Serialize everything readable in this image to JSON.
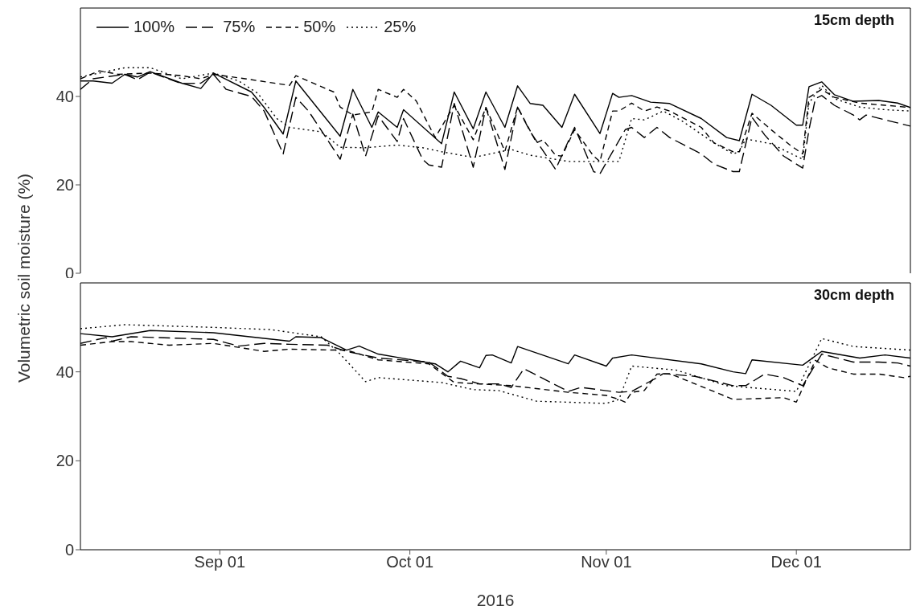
{
  "chart_data": [
    {
      "type": "line",
      "title": "15cm depth",
      "ylabel": "Volumetric soil moisture (%)",
      "xlim": [
        "2016-08-10",
        "2016-12-19"
      ],
      "ylim": [
        0,
        60
      ],
      "yticks": [
        0,
        20,
        40
      ],
      "tick_labels": "y",
      "legend": "top left",
      "series": [
        {
          "name": "100%",
          "color": "#000000",
          "line_style": "solid",
          "x": [
            "2016-08-10",
            "2016-08-12",
            "2016-08-15",
            "2016-08-17",
            "2016-08-19",
            "2016-08-21",
            "2016-08-26",
            "2016-08-29",
            "2016-08-31",
            "2016-09-06",
            "2016-09-08",
            "2016-09-11",
            "2016-09-13",
            "2016-09-20",
            "2016-09-22",
            "2016-09-25",
            "2016-09-26",
            "2016-09-29",
            "2016-09-30",
            "2016-10-06",
            "2016-10-08",
            "2016-10-11",
            "2016-10-13",
            "2016-10-16",
            "2016-10-18",
            "2016-10-20",
            "2016-10-22",
            "2016-10-25",
            "2016-10-27",
            "2016-10-31",
            "2016-11-02",
            "2016-11-03",
            "2016-11-05",
            "2016-11-08",
            "2016-11-11",
            "2016-11-16",
            "2016-11-20",
            "2016-11-22",
            "2016-11-24",
            "2016-11-27",
            "2016-12-01",
            "2016-12-02",
            "2016-12-03",
            "2016-12-05",
            "2016-12-07",
            "2016-12-10",
            "2016-12-14",
            "2016-12-17",
            "2016-12-19"
          ],
          "values": [
            43.5,
            43.5,
            43,
            45,
            44.4,
            45.6,
            43,
            41.8,
            45.3,
            41,
            37.5,
            31.5,
            43.5,
            31,
            41.6,
            33,
            36.5,
            33,
            37,
            29.3,
            41,
            32.7,
            41,
            33,
            42.4,
            38.4,
            38,
            33,
            40.5,
            31.6,
            40.7,
            39.8,
            40.2,
            38.7,
            38.4,
            35,
            30.7,
            30,
            40.5,
            38,
            33.5,
            33.5,
            42.2,
            43.3,
            40.4,
            38.9,
            39.1,
            38.5,
            37.5
          ]
        },
        {
          "name": "75%",
          "color": "#000000",
          "line_style": "longdash",
          "x": [
            "2016-08-10",
            "2016-08-12",
            "2016-08-17",
            "2016-08-19",
            "2016-08-21",
            "2016-08-26",
            "2016-08-29",
            "2016-08-31",
            "2016-09-02",
            "2016-09-06",
            "2016-09-08",
            "2016-09-11",
            "2016-09-13",
            "2016-09-15",
            "2016-09-20",
            "2016-09-22",
            "2016-09-24",
            "2016-09-26",
            "2016-09-29",
            "2016-09-30",
            "2016-10-03",
            "2016-10-04",
            "2016-10-06",
            "2016-10-08",
            "2016-10-11",
            "2016-10-13",
            "2016-10-16",
            "2016-10-18",
            "2016-10-20",
            "2016-10-24",
            "2016-10-27",
            "2016-10-30",
            "2016-10-31",
            "2016-11-04",
            "2016-11-05",
            "2016-11-07",
            "2016-11-09",
            "2016-11-11",
            "2016-11-16",
            "2016-11-18",
            "2016-11-21",
            "2016-11-22",
            "2016-11-24",
            "2016-11-26",
            "2016-11-29",
            "2016-12-02",
            "2016-12-03",
            "2016-12-04",
            "2016-12-05",
            "2016-12-07",
            "2016-12-10",
            "2016-12-11",
            "2016-12-12",
            "2016-12-15",
            "2016-12-19"
          ],
          "values": [
            41.6,
            44,
            45,
            43.8,
            45.5,
            42.9,
            43,
            45,
            41.6,
            40,
            36.7,
            27,
            39.8,
            36.7,
            25.8,
            36,
            26.5,
            35.6,
            29.8,
            35,
            25.8,
            24.5,
            24,
            38.4,
            24,
            37.5,
            23.5,
            37.6,
            32,
            23.5,
            33,
            23,
            22.5,
            32.5,
            33,
            30.7,
            33,
            30.7,
            27,
            24.7,
            23,
            23,
            35.3,
            31.3,
            26.5,
            23.8,
            32.5,
            39.5,
            40.2,
            38,
            35.8,
            34.7,
            35.8,
            34.7,
            33.3
          ]
        },
        {
          "name": "50%",
          "color": "#000000",
          "line_style": "dashed",
          "x": [
            "2016-08-10",
            "2016-08-13",
            "2016-08-16",
            "2016-08-21",
            "2016-08-26",
            "2016-08-29",
            "2016-08-31",
            "2016-09-05",
            "2016-09-12",
            "2016-09-13",
            "2016-09-19",
            "2016-09-20",
            "2016-09-22",
            "2016-09-25",
            "2016-09-26",
            "2016-09-29",
            "2016-09-30",
            "2016-10-02",
            "2016-10-05",
            "2016-10-08",
            "2016-10-11",
            "2016-10-13",
            "2016-10-16",
            "2016-10-18",
            "2016-10-21",
            "2016-10-22",
            "2016-10-24",
            "2016-10-25",
            "2016-10-27",
            "2016-10-30",
            "2016-10-31",
            "2016-11-02",
            "2016-11-03",
            "2016-11-05",
            "2016-11-07",
            "2016-11-09",
            "2016-11-11",
            "2016-11-16",
            "2016-11-18",
            "2016-11-21",
            "2016-11-22",
            "2016-11-24",
            "2016-11-27",
            "2016-11-30",
            "2016-12-02",
            "2016-12-03",
            "2016-12-05",
            "2016-12-07",
            "2016-12-11",
            "2016-12-15",
            "2016-12-19"
          ],
          "values": [
            44,
            45.8,
            45,
            45.3,
            44.7,
            44,
            45,
            44,
            42.5,
            44.7,
            41,
            37.6,
            35.8,
            36.5,
            41.6,
            39.8,
            41.6,
            39,
            30.7,
            38,
            30.2,
            37.5,
            27.6,
            37.6,
            29.5,
            30.2,
            26.7,
            26.5,
            32.5,
            26.5,
            25.3,
            36.7,
            36.7,
            38.5,
            36.7,
            37.6,
            36.7,
            33,
            29.5,
            27.5,
            27.5,
            36.2,
            32.5,
            29,
            27,
            39.8,
            41.6,
            39.8,
            38.5,
            38,
            37.5
          ]
        },
        {
          "name": "25%",
          "color": "#000000",
          "line_style": "dotted",
          "x": [
            "2016-08-10",
            "2016-08-17",
            "2016-08-21",
            "2016-08-26",
            "2016-08-31",
            "2016-09-04",
            "2016-09-07",
            "2016-09-10",
            "2016-09-12",
            "2016-09-17",
            "2016-09-20",
            "2016-09-24",
            "2016-09-29",
            "2016-10-03",
            "2016-10-06",
            "2016-10-11",
            "2016-10-17",
            "2016-10-20",
            "2016-10-26",
            "2016-11-03",
            "2016-11-05",
            "2016-11-07",
            "2016-11-10",
            "2016-11-13",
            "2016-11-18",
            "2016-11-21",
            "2016-11-22",
            "2016-11-23",
            "2016-11-27",
            "2016-12-02",
            "2016-12-03",
            "2016-12-05",
            "2016-12-07",
            "2016-12-11",
            "2016-12-15",
            "2016-12-19"
          ],
          "values": [
            44.4,
            46.5,
            46.5,
            44,
            45.3,
            43.5,
            40.7,
            35,
            33,
            32,
            28.5,
            28.4,
            29,
            28.4,
            27.5,
            26.2,
            28,
            26.7,
            25.3,
            25.3,
            35,
            34.7,
            36.7,
            34.4,
            29.5,
            27,
            27.5,
            30.4,
            29.3,
            25.8,
            38.5,
            42.5,
            39.5,
            37.6,
            37,
            36.7
          ]
        }
      ]
    },
    {
      "type": "line",
      "title": "30cm depth",
      "xlabel": "2016",
      "xlim": [
        "2016-08-10",
        "2016-12-19"
      ],
      "xticks": [
        {
          "value": "2016-09-01",
          "label": "Sep 01"
        },
        {
          "value": "2016-10-01",
          "label": "Oct 01"
        },
        {
          "value": "2016-11-01",
          "label": "Nov 01"
        },
        {
          "value": "2016-12-01",
          "label": "Dec 01"
        }
      ],
      "ylim": [
        0,
        60
      ],
      "yticks": [
        0,
        20,
        40
      ],
      "series": [
        {
          "color": "#000000",
          "line_style": "solid",
          "x": [
            "2016-08-10",
            "2016-08-15",
            "2016-08-21",
            "2016-08-31",
            "2016-09-12",
            "2016-09-13",
            "2016-09-17",
            "2016-09-21",
            "2016-09-23",
            "2016-09-26",
            "2016-10-05",
            "2016-10-07",
            "2016-10-09",
            "2016-10-12",
            "2016-10-13",
            "2016-10-14",
            "2016-10-17",
            "2016-10-18",
            "2016-10-26",
            "2016-10-27",
            "2016-11-01",
            "2016-11-02",
            "2016-11-05",
            "2016-11-16",
            "2016-11-21",
            "2016-11-23",
            "2016-11-24",
            "2016-12-02",
            "2016-12-05",
            "2016-12-11",
            "2016-12-15",
            "2016-12-19"
          ],
          "values": [
            48.6,
            47.9,
            49.3,
            48.8,
            46.9,
            47.9,
            47.7,
            44.9,
            45.8,
            44,
            41.8,
            40,
            42.4,
            40.9,
            43.7,
            43.8,
            42,
            45.7,
            41.8,
            43.8,
            41.3,
            43.1,
            43.8,
            41.8,
            40,
            39.6,
            42.7,
            41.5,
            44.6,
            43.1,
            43.8,
            43.1
          ]
        },
        {
          "color": "#000000",
          "line_style": "longdash",
          "x": [
            "2016-08-10",
            "2016-08-14",
            "2016-08-15",
            "2016-08-18",
            "2016-08-31",
            "2016-09-04",
            "2016-09-08",
            "2016-09-12",
            "2016-09-18",
            "2016-09-21",
            "2016-09-26",
            "2016-10-04",
            "2016-10-07",
            "2016-10-09",
            "2016-10-12",
            "2016-10-15",
            "2016-10-17",
            "2016-10-19",
            "2016-10-26",
            "2016-10-28",
            "2016-11-03",
            "2016-11-05",
            "2016-11-09",
            "2016-11-10",
            "2016-11-15",
            "2016-11-21",
            "2016-11-23",
            "2016-11-26",
            "2016-11-29",
            "2016-12-02",
            "2016-12-05",
            "2016-12-10",
            "2016-12-14",
            "2016-12-17",
            "2016-12-19"
          ],
          "values": [
            46.4,
            47.7,
            46.9,
            47.9,
            47.3,
            45.8,
            46.4,
            46.2,
            46,
            44.6,
            43.1,
            42.2,
            39,
            38.5,
            37.3,
            37.3,
            36.5,
            40.7,
            35.6,
            36.5,
            35.4,
            35.6,
            38.7,
            39.6,
            39,
            36.9,
            36.9,
            39.5,
            38.7,
            36.9,
            44,
            42.2,
            42.2,
            42,
            41.3
          ]
        },
        {
          "color": "#000000",
          "line_style": "dashed",
          "x": [
            "2016-08-10",
            "2016-08-15",
            "2016-08-18",
            "2016-08-24",
            "2016-08-31",
            "2016-09-08",
            "2016-09-12",
            "2016-09-19",
            "2016-09-21",
            "2016-09-26",
            "2016-10-04",
            "2016-10-08",
            "2016-10-17",
            "2016-10-26",
            "2016-11-01",
            "2016-11-03",
            "2016-11-04",
            "2016-11-05",
            "2016-11-07",
            "2016-11-09",
            "2016-11-11",
            "2016-11-19",
            "2016-11-21",
            "2016-11-29",
            "2016-12-01",
            "2016-12-04",
            "2016-12-06",
            "2016-12-10",
            "2016-12-14",
            "2016-12-18",
            "2016-12-19"
          ],
          "values": [
            46,
            46.8,
            46.8,
            46,
            46.4,
            44.6,
            45.1,
            44.9,
            44.9,
            42.7,
            41.8,
            37.6,
            36.9,
            35.4,
            34.7,
            33.8,
            33.2,
            35.4,
            35.8,
            39.5,
            39.6,
            35,
            33.8,
            34.2,
            33.2,
            42.6,
            40.9,
            39.5,
            39.5,
            38.7,
            39
          ]
        },
        {
          "color": "#000000",
          "line_style": "dotted",
          "x": [
            "2016-08-10",
            "2016-08-17",
            "2016-08-31",
            "2016-09-09",
            "2016-09-17",
            "2016-09-20",
            "2016-09-24",
            "2016-09-26",
            "2016-10-06",
            "2016-10-11",
            "2016-10-15",
            "2016-10-21",
            "2016-11-01",
            "2016-11-03",
            "2016-11-05",
            "2016-11-12",
            "2016-11-20",
            "2016-12-01",
            "2016-12-05",
            "2016-12-10",
            "2016-12-19"
          ],
          "values": [
            49.7,
            50.6,
            50,
            49.5,
            47.9,
            44,
            37.8,
            38.7,
            37.6,
            36,
            35.8,
            33.4,
            32.9,
            33.8,
            41.3,
            40.4,
            36.9,
            35.6,
            47.5,
            45.7,
            44.9
          ]
        }
      ]
    }
  ]
}
